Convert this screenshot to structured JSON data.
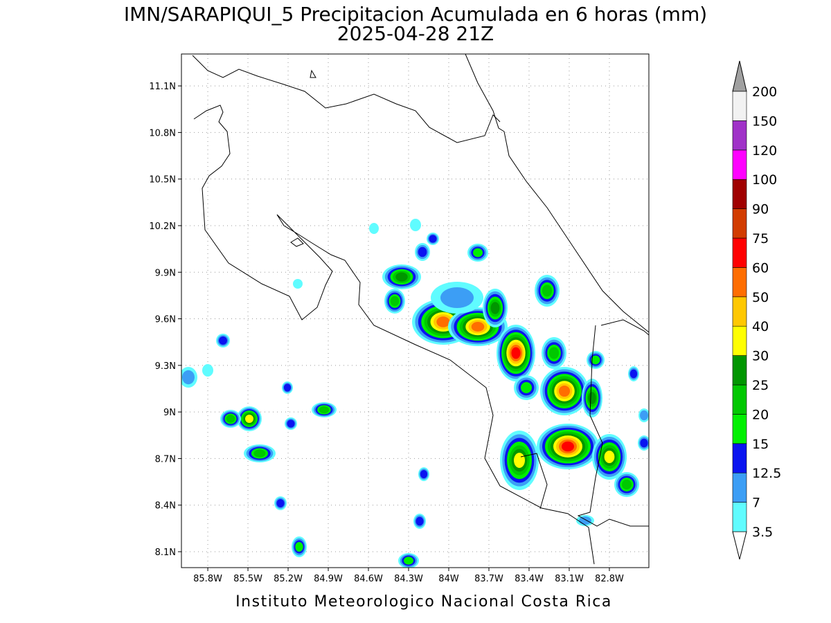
{
  "header": {
    "title": "IMN/SARAPIQUI_5 Precipitacion Acumulada en 6 horas (mm)",
    "subtitle": "2025-04-28 21Z"
  },
  "map": {
    "lat_ticks": [
      {
        "value": 8.1,
        "label": "8.1N"
      },
      {
        "value": 8.4,
        "label": "8.4N"
      },
      {
        "value": 8.7,
        "label": "8.7N"
      },
      {
        "value": 9,
        "label": "9N"
      },
      {
        "value": 9.3,
        "label": "9.3N"
      },
      {
        "value": 9.6,
        "label": "9.6N"
      },
      {
        "value": 9.9,
        "label": "9.9N"
      },
      {
        "value": 10.2,
        "label": "10.2N"
      },
      {
        "value": 10.5,
        "label": "10.5N"
      },
      {
        "value": 10.8,
        "label": "10.8N"
      },
      {
        "value": 11.1,
        "label": "11.1N"
      }
    ],
    "lon_ticks": [
      {
        "value": -85.8,
        "label": "85.8W"
      },
      {
        "value": -85.5,
        "label": "85.5W"
      },
      {
        "value": -85.2,
        "label": "85.2W"
      },
      {
        "value": -84.9,
        "label": "84.9W"
      },
      {
        "value": -84.6,
        "label": "84.6W"
      },
      {
        "value": -84.3,
        "label": "84.3W"
      },
      {
        "value": -84,
        "label": "84W"
      },
      {
        "value": -83.7,
        "label": "83.7W"
      },
      {
        "value": -83.4,
        "label": "83.4W"
      },
      {
        "value": -83.1,
        "label": "83.1W"
      },
      {
        "value": -82.8,
        "label": "82.8W"
      }
    ],
    "grid": true
  },
  "colorbar": {
    "levels": [
      3.5,
      7,
      12.5,
      15,
      20,
      25,
      30,
      40,
      50,
      60,
      75,
      90,
      100,
      120,
      150,
      200
    ],
    "colors": [
      "#60fcff",
      "#3c9ef5",
      "#0a14f0",
      "#00f000",
      "#00c800",
      "#009600",
      "#ffff00",
      "#ffc800",
      "#ff6e00",
      "#ff0000",
      "#d23c00",
      "#a00000",
      "#ff00ff",
      "#a032c8",
      "#f2f2f2"
    ],
    "under_color": "#ffffff",
    "over_color": "#a0a0a0"
  },
  "footer": "Instituto Meteorologico Nacional Costa Rica"
}
